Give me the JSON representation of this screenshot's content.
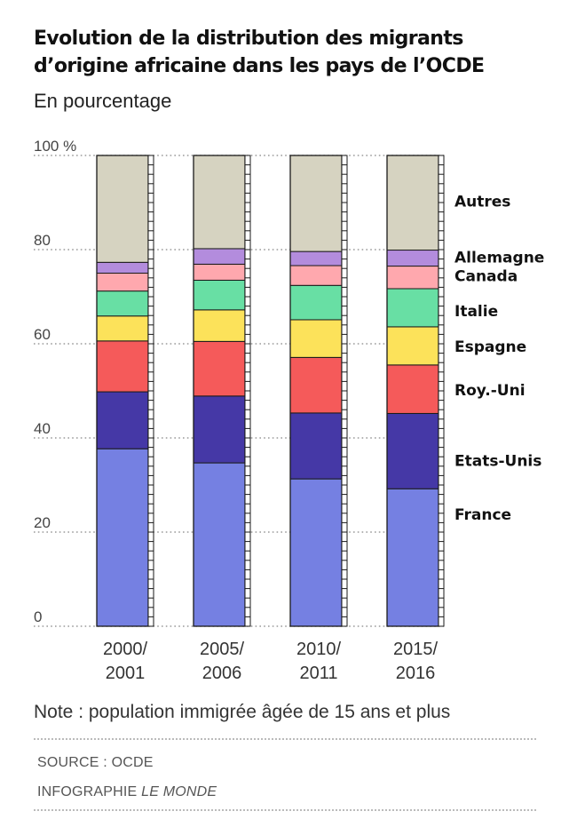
{
  "title_line1": "Evolution de la distribution des migrants",
  "title_line2": "d’origine africaine dans les pays de l’OCDE",
  "subtitle": "En pourcentage",
  "note": "Note : population immigrée âgée de 15 ans et plus",
  "source": "SOURCE : OCDE",
  "credit_prefix": "INFOGRAPHIE",
  "credit_name": "LE MONDE",
  "chart_data": {
    "type": "bar",
    "stacked": true,
    "categories": [
      [
        "2000/",
        "2001"
      ],
      [
        "2005/",
        "2006"
      ],
      [
        "2010/",
        "2011"
      ],
      [
        "2015/",
        "2016"
      ]
    ],
    "ylim": [
      0,
      100
    ],
    "yticks": [
      0,
      20,
      40,
      60,
      80,
      100
    ],
    "ytick_labels": [
      "0",
      "20",
      "40",
      "60",
      "80",
      "100 %"
    ],
    "grid": "dotted horizontal",
    "legend_placement": "right, labels aligned with last bar segments",
    "series": [
      {
        "name": "France",
        "color": "#7580e2",
        "values": [
          37.7,
          34.7,
          31.3,
          29.2
        ]
      },
      {
        "name": "Etats-Unis",
        "color": "#4538a6",
        "values": [
          12.1,
          14.2,
          14.0,
          16.0
        ]
      },
      {
        "name": "Roy.-Uni",
        "color": "#f55a5a",
        "values": [
          10.8,
          11.6,
          11.8,
          10.3
        ]
      },
      {
        "name": "Espagne",
        "color": "#fce25a",
        "values": [
          5.3,
          6.7,
          8.0,
          8.1
        ]
      },
      {
        "name": "Italie",
        "color": "#68dfa4",
        "values": [
          5.3,
          6.3,
          7.3,
          8.1
        ]
      },
      {
        "name": "Canada",
        "color": "#ffa8ae",
        "values": [
          3.8,
          3.4,
          4.2,
          4.8
        ]
      },
      {
        "name": "Allemagne",
        "color": "#b38cdd",
        "values": [
          2.3,
          3.3,
          3.0,
          3.4
        ]
      },
      {
        "name": "Autres",
        "color": "#d6d3c1",
        "values": [
          22.7,
          19.8,
          20.4,
          20.1
        ]
      }
    ],
    "label_y": {
      "France": 23.8,
      "Etats-Unis": 35.2,
      "Roy.-Uni": 50.2,
      "Espagne": 59.4,
      "Italie": 67.0,
      "Canada": 74.4,
      "Allemagne": 78.4,
      "Autres": 90.3
    }
  }
}
